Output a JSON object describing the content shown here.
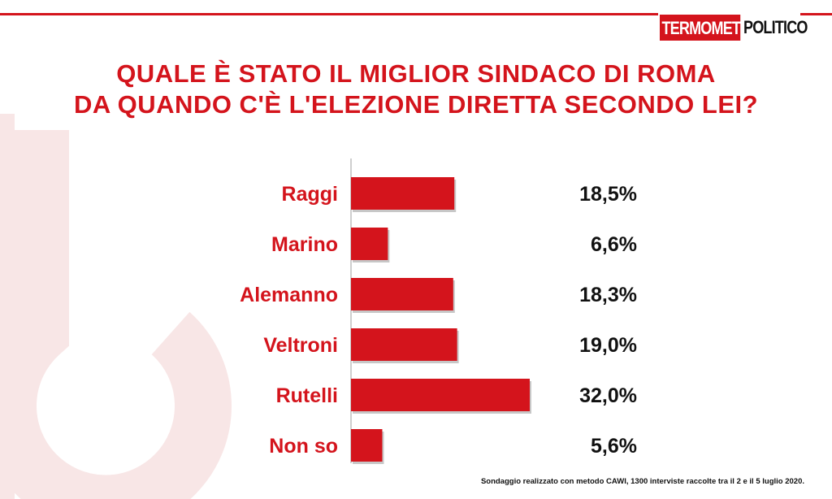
{
  "logo": {
    "part1": "TERMOMETRO",
    "part2": "POLITICO"
  },
  "title_lines": [
    "QUALE È STATO IL MIGLIOR SINDACO DI ROMA",
    "DA QUANDO C'È L'ELEZIONE DIRETTA SECONDO LEI?"
  ],
  "footnote": "Sondaggio realizzato con metodo CAWI, 1300 interviste raccolte tra il 2 e il 5 luglio 2020.",
  "colors": {
    "accent": "#d4141c",
    "text": "#111111",
    "watermark": "#f7e4e4"
  },
  "chart_data": {
    "type": "bar",
    "orientation": "horizontal",
    "title": "QUALE È STATO IL MIGLIOR SINDACO DI ROMA DA QUANDO C'È L'ELEZIONE DIRETTA SECONDO LEI?",
    "categories": [
      "Raggi",
      "Marino",
      "Alemanno",
      "Veltroni",
      "Rutelli",
      "Non so"
    ],
    "values": [
      18.5,
      6.6,
      18.3,
      19.0,
      32.0,
      5.6
    ],
    "value_labels": [
      "18,5%",
      "6,6%",
      "18,3%",
      "19,0%",
      "32,0%",
      "5,6%"
    ],
    "unit": "%",
    "xlim": [
      0,
      32.0
    ],
    "grid": false,
    "legend": "none"
  }
}
